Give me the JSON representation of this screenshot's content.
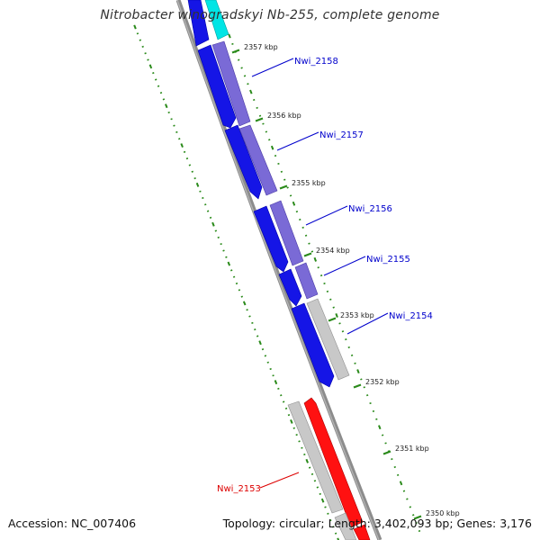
{
  "title": "Nitrobacter winogradskyi Nb-255, complete genome",
  "footer": {
    "accession": "Accession: NC_007406",
    "topology": "Topology: circular; Length: 3,402,093 bp; Genes: 3,176"
  },
  "colors": {
    "backbone": "#8c8c8c",
    "forward_strand_gene": "#6f5fcf",
    "reverse_strand_gene": "#0000ee",
    "other_gene": "#c8c8c8",
    "highlight_gene": "#00e5e5",
    "rna_gene": "#ff1111",
    "tick": "#2a8a1a",
    "label_blue": "#0000cc",
    "label_red": "#dd0000"
  },
  "ticks": [
    {
      "label": "2357 kbp"
    },
    {
      "label": "2356 kbp"
    },
    {
      "label": "2355 kbp"
    },
    {
      "label": "2354 kbp"
    },
    {
      "label": "2353 kbp"
    },
    {
      "label": "2352 kbp"
    },
    {
      "label": "2351 kbp"
    },
    {
      "label": "2350 kbp"
    }
  ],
  "gene_labels": [
    {
      "name": "Nwi_2158",
      "color": "#0000cc"
    },
    {
      "name": "Nwi_2157",
      "color": "#0000cc"
    },
    {
      "name": "Nwi_2156",
      "color": "#0000cc"
    },
    {
      "name": "Nwi_2155",
      "color": "#0000cc"
    },
    {
      "name": "Nwi_2154",
      "color": "#0000cc"
    },
    {
      "name": "Nwi_2153",
      "color": "#dd0000"
    }
  ]
}
